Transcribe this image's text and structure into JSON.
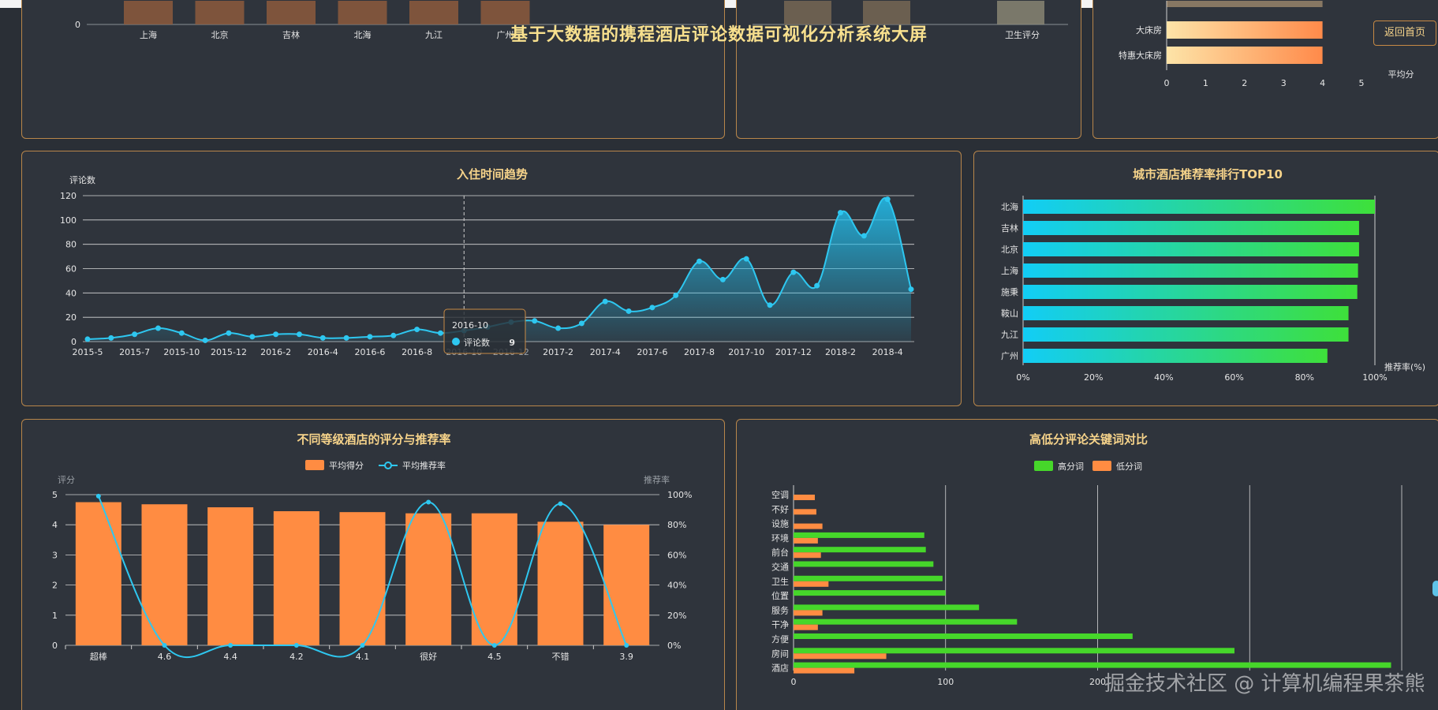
{
  "page": {
    "title": "基于大数据的携程酒店评论数据可视化分析系统大屏",
    "back_button": "返回首页",
    "watermark": "掘金技术社区 @ 计算机编程果茶熊"
  },
  "colors": {
    "accent_orange": "#ff8c42",
    "accent_cyan": "#2ec7f0",
    "accent_green": "#46d72a",
    "border": "#b8864a",
    "title": "#f6d38a"
  },
  "chart_data": [
    {
      "id": "city_bar_partial",
      "type": "bar",
      "title": "",
      "categories": [
        "上海",
        "北京",
        "吉林",
        "北海",
        "九江",
        "广州"
      ],
      "y_ticks_visible": [
        "0"
      ],
      "note_visible": "partially scrolled out of view"
    },
    {
      "id": "rating_bar_partial",
      "type": "bar",
      "title": "",
      "categories_visible": [
        "卫生评分"
      ]
    },
    {
      "id": "room_type_partial",
      "type": "bar",
      "orientation": "horizontal",
      "title": "",
      "categories": [
        "大床房",
        "特惠大床房"
      ],
      "values": [
        4.0,
        4.0
      ],
      "xlabel": "平均分",
      "xlim": [
        0,
        5
      ],
      "x_ticks": [
        "0",
        "1",
        "2",
        "3",
        "4",
        "5"
      ]
    },
    {
      "id": "trend",
      "type": "area",
      "title": "入住时间趋势",
      "ylabel": "评论数",
      "ylim": [
        0,
        120
      ],
      "y_ticks": [
        "0",
        "20",
        "40",
        "60",
        "80",
        "100",
        "120"
      ],
      "x_tick_labels": [
        "2015-5",
        "2015-7",
        "2015-10",
        "2015-12",
        "2016-2",
        "2016-4",
        "2016-6",
        "2016-8",
        "2016-10",
        "2016-12",
        "2017-2",
        "2017-4",
        "2017-6",
        "2017-8",
        "2017-10",
        "2017-12",
        "2018-2",
        "2018-4"
      ],
      "x": [
        "2015-5",
        "2015-6",
        "2015-7",
        "2015-8",
        "2015-10",
        "2015-11",
        "2015-12",
        "2016-1",
        "2016-2",
        "2016-3",
        "2016-4",
        "2016-5",
        "2016-6",
        "2016-7",
        "2016-8",
        "2016-9",
        "2016-10",
        "2016-11",
        "2016-12",
        "2017-1",
        "2017-2",
        "2017-3",
        "2017-4",
        "2017-5",
        "2017-6",
        "2017-7",
        "2017-8",
        "2017-9",
        "2017-10",
        "2017-11",
        "2017-12",
        "2018-1",
        "2018-2",
        "2018-3",
        "2018-4",
        "2018-5"
      ],
      "series": [
        {
          "name": "评论数",
          "values": [
            2,
            3,
            6,
            11,
            7,
            1,
            7,
            4,
            6,
            6,
            3,
            3,
            4,
            5,
            10,
            7,
            9,
            12,
            16,
            17,
            11,
            15,
            33,
            25,
            28,
            38,
            66,
            51,
            68,
            30,
            57,
            46,
            106,
            87,
            117,
            43
          ]
        }
      ],
      "tooltip": {
        "title": "2016-10",
        "series": "评论数",
        "value": "9"
      }
    },
    {
      "id": "city_recommend",
      "type": "bar",
      "orientation": "horizontal",
      "title": "城市酒店推荐率排行TOP10",
      "categories": [
        "北海",
        "吉林",
        "北京",
        "上海",
        "施秉",
        "鞍山",
        "九江",
        "广州"
      ],
      "values": [
        100,
        95.5,
        95.5,
        95.2,
        95,
        92.5,
        92.5,
        86.5
      ],
      "xlabel": "推荐率(%)",
      "xlim": [
        0,
        100
      ],
      "x_ticks": [
        "0%",
        "20%",
        "40%",
        "60%",
        "80%",
        "100%"
      ]
    },
    {
      "id": "level_score",
      "type": "bar",
      "title": "不同等级酒店的评分与推荐率",
      "categories": [
        "超棒",
        "4.6",
        "4.4",
        "4.2",
        "4.1",
        "很好",
        "4.5",
        "不错",
        "3.9"
      ],
      "ylabel": "评分",
      "ylabel_right": "推荐率",
      "ylim": [
        0,
        5
      ],
      "ylim_right": [
        0,
        100
      ],
      "y_ticks": [
        "0",
        "1",
        "2",
        "3",
        "4",
        "5"
      ],
      "y_ticks_right": [
        "0%",
        "20%",
        "40%",
        "60%",
        "80%",
        "100%"
      ],
      "series": [
        {
          "name": "平均得分",
          "type": "bar",
          "values": [
            4.75,
            4.68,
            4.58,
            4.45,
            4.42,
            4.38,
            4.38,
            4.1,
            4.0
          ]
        },
        {
          "name": "平均推荐率",
          "type": "line",
          "values": [
            99,
            0,
            0,
            0,
            0,
            95,
            0,
            94,
            0
          ]
        }
      ],
      "legend": "top-center"
    },
    {
      "id": "keywords",
      "type": "bar",
      "orientation": "horizontal",
      "title": "高低分评论关键词对比",
      "categories": [
        "空调",
        "不好",
        "设施",
        "环境",
        "前台",
        "交通",
        "卫生",
        "位置",
        "服务",
        "干净",
        "方便",
        "房间",
        "酒店"
      ],
      "xlim": [
        0,
        400
      ],
      "x_ticks": [
        "0",
        "100",
        "200"
      ],
      "series": [
        {
          "name": "高分词",
          "values": [
            0,
            0,
            0,
            86,
            87,
            92,
            98,
            100,
            122,
            147,
            223,
            290,
            393
          ]
        },
        {
          "name": "低分词",
          "values": [
            14,
            15,
            19,
            16,
            18,
            0,
            23,
            0,
            19,
            16,
            0,
            61,
            40
          ]
        }
      ],
      "legend": "top-center"
    }
  ]
}
